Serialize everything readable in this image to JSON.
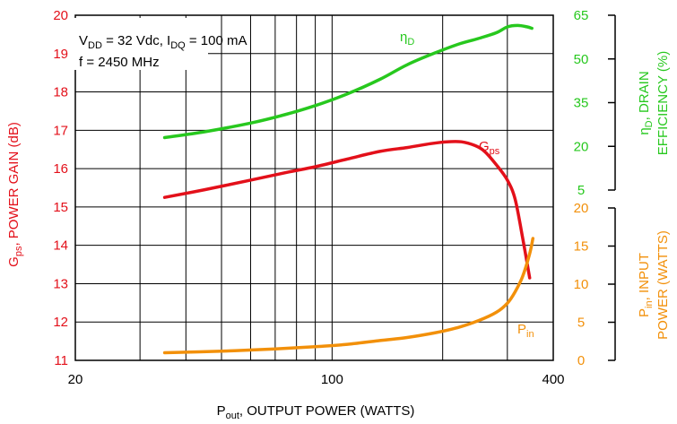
{
  "chart_data": {
    "type": "line",
    "x_axis": {
      "label_main": "P",
      "label_sub": "out",
      "label_rest": ", OUTPUT POWER (WATTS)",
      "scale": "log",
      "range": [
        20,
        400
      ],
      "tick_labels": [
        "20",
        "100",
        "400"
      ]
    },
    "left_axis": {
      "label_main": "G",
      "label_sub": "ps",
      "label_rest": ", POWER GAIN (dB)",
      "range": [
        11,
        20
      ],
      "ticks": [
        11,
        12,
        13,
        14,
        15,
        16,
        17,
        18,
        19,
        20
      ],
      "color": "#e3101a"
    },
    "right_upper_axis": {
      "label_line1_main": "η",
      "label_line1_sub": "D",
      "label_line1_rest": ", DRAIN",
      "label_line2": "EFFICIENCY (%)",
      "range": [
        5,
        65
      ],
      "ticks": [
        5,
        20,
        35,
        50,
        65
      ],
      "color": "#27c81e"
    },
    "right_lower_axis": {
      "label_line1_main": "P",
      "label_line1_sub": "in",
      "label_line1_rest": ", INPUT",
      "label_line2": "POWER (WATTS)",
      "range": [
        0,
        20
      ],
      "ticks": [
        0,
        5,
        10,
        15,
        20
      ],
      "color": "#f2900a"
    },
    "conditions": {
      "line1": {
        "a": "V",
        "a_sub": "DD",
        "b": " = 32 Vdc, I",
        "b_sub": "DQ",
        "c": " = 100 mA"
      },
      "line2": "f = 2450 MHz"
    },
    "series": [
      {
        "name": "Gps",
        "label_main": "G",
        "label_sub": "ps",
        "axis": "left",
        "color": "#e3101a",
        "x": [
          35,
          45,
          60,
          75,
          90,
          110,
          135,
          160,
          185,
          205,
          225,
          245,
          260,
          280,
          300,
          315,
          330,
          345
        ],
        "y": [
          15.25,
          15.45,
          15.7,
          15.9,
          16.05,
          16.25,
          16.45,
          16.55,
          16.65,
          16.7,
          16.7,
          16.6,
          16.45,
          16.1,
          15.7,
          15.2,
          14.2,
          13.15
        ]
      },
      {
        "name": "ηD",
        "label_main": "η",
        "label_sub": "D",
        "axis": "right_upper",
        "color": "#27c81e",
        "x": [
          35,
          45,
          60,
          75,
          90,
          110,
          135,
          160,
          190,
          220,
          250,
          280,
          300,
          320,
          340,
          350
        ],
        "y": [
          23,
          25,
          28,
          31,
          34,
          38,
          43,
          48,
          52,
          55,
          57,
          59,
          61,
          61.5,
          61,
          60.5
        ]
      },
      {
        "name": "Pin",
        "label_main": "P",
        "label_sub": "in",
        "axis": "right_lower",
        "color": "#f2900a",
        "x": [
          35,
          50,
          70,
          90,
          110,
          135,
          160,
          190,
          220,
          250,
          280,
          300,
          315,
          330,
          345,
          352
        ],
        "y": [
          1,
          1.2,
          1.5,
          1.8,
          2.1,
          2.6,
          3,
          3.6,
          4.3,
          5.2,
          6.3,
          7.5,
          9,
          11,
          14,
          16
        ]
      }
    ]
  }
}
